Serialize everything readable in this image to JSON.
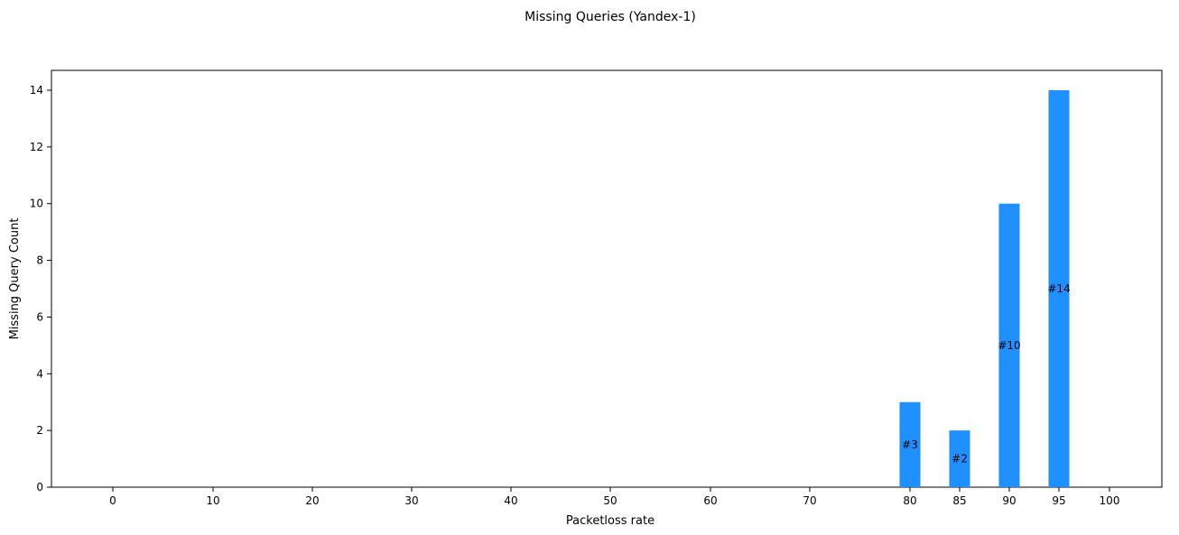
{
  "chart_data": {
    "type": "bar",
    "title": "Missing Queries (Yandex-1)",
    "xlabel": "Packetloss rate",
    "ylabel": "Missing Query Count",
    "x_ticks": [
      0,
      10,
      20,
      30,
      40,
      50,
      60,
      70,
      80,
      85,
      90,
      95,
      100
    ],
    "y_ticks": [
      0,
      2,
      4,
      6,
      8,
      10,
      12,
      14
    ],
    "ylim": [
      0,
      14.7
    ],
    "grid": false,
    "bar_color": "#1E90FF",
    "bars": [
      {
        "category": "0",
        "value": 0,
        "label": ""
      },
      {
        "category": "10",
        "value": 0,
        "label": ""
      },
      {
        "category": "20",
        "value": 0,
        "label": ""
      },
      {
        "category": "30",
        "value": 0,
        "label": ""
      },
      {
        "category": "40",
        "value": 0,
        "label": ""
      },
      {
        "category": "50",
        "value": 0,
        "label": ""
      },
      {
        "category": "60",
        "value": 0,
        "label": ""
      },
      {
        "category": "70",
        "value": 0,
        "label": ""
      },
      {
        "category": "80",
        "value": 3,
        "label": "#3"
      },
      {
        "category": "85",
        "value": 2,
        "label": "#2"
      },
      {
        "category": "90",
        "value": 10,
        "label": "#10"
      },
      {
        "category": "95",
        "value": 14,
        "label": "#14"
      },
      {
        "category": "100",
        "value": 0,
        "label": ""
      }
    ]
  }
}
